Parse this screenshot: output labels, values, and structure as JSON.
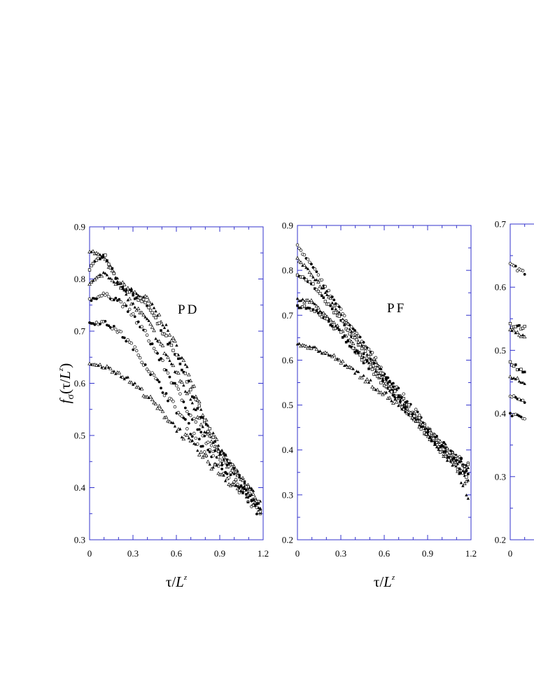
{
  "chart_data": [
    {
      "type": "scatter",
      "panel_label": "PD",
      "xlim": [
        0,
        1.2
      ],
      "ylim": [
        0.3,
        0.9
      ],
      "xticks": [
        "0",
        "0.3",
        "0.6",
        "0.9",
        "1.2"
      ],
      "yticks": [
        "0.3",
        "0.4",
        "0.5",
        "0.6",
        "0.7",
        "0.8",
        "0.9"
      ],
      "xlabel": "τ/L^z",
      "ylabel": "f_σ(τ/L^z)",
      "series": [
        {
          "marker": "triangle",
          "points": [
            [
              0,
              0.855
            ],
            [
              0.1,
              0.84
            ],
            [
              0.2,
              0.795
            ],
            [
              0.3,
              0.775
            ],
            [
              0.4,
              0.76
            ],
            [
              0.5,
              0.72
            ],
            [
              0.6,
              0.67
            ],
            [
              0.7,
              0.61
            ],
            [
              0.8,
              0.53
            ],
            [
              0.9,
              0.47
            ],
            [
              1.0,
              0.43
            ],
            [
              1.1,
              0.4
            ],
            [
              1.18,
              0.37
            ]
          ]
        },
        {
          "marker": "square",
          "points": [
            [
              0,
              0.82
            ],
            [
              0.1,
              0.85
            ],
            [
              0.2,
              0.79
            ],
            [
              0.3,
              0.77
            ],
            [
              0.4,
              0.75
            ],
            [
              0.5,
              0.7
            ],
            [
              0.6,
              0.65
            ],
            [
              0.7,
              0.59
            ],
            [
              0.8,
              0.52
            ],
            [
              0.9,
              0.47
            ],
            [
              1.0,
              0.43
            ],
            [
              1.1,
              0.39
            ],
            [
              1.18,
              0.36
            ]
          ]
        },
        {
          "marker": "triangle",
          "points": [
            [
              0,
              0.79
            ],
            [
              0.1,
              0.812
            ],
            [
              0.2,
              0.79
            ],
            [
              0.3,
              0.75
            ],
            [
              0.4,
              0.72
            ],
            [
              0.5,
              0.67
            ],
            [
              0.6,
              0.62
            ],
            [
              0.7,
              0.57
            ],
            [
              0.8,
              0.51
            ],
            [
              0.9,
              0.46
            ],
            [
              1.0,
              0.43
            ],
            [
              1.1,
              0.39
            ],
            [
              1.18,
              0.37
            ]
          ]
        },
        {
          "marker": "circle",
          "points": [
            [
              0,
              0.76
            ],
            [
              0.1,
              0.77
            ],
            [
              0.2,
              0.76
            ],
            [
              0.3,
              0.73
            ],
            [
              0.4,
              0.69
            ],
            [
              0.5,
              0.64
            ],
            [
              0.6,
              0.59
            ],
            [
              0.7,
              0.54
            ],
            [
              0.8,
              0.49
            ],
            [
              0.9,
              0.45
            ],
            [
              1.0,
              0.42
            ],
            [
              1.1,
              0.39
            ],
            [
              1.18,
              0.36
            ]
          ]
        },
        {
          "marker": "circle",
          "points": [
            [
              0,
              0.715
            ],
            [
              0.1,
              0.717
            ],
            [
              0.2,
              0.7
            ],
            [
              0.3,
              0.67
            ],
            [
              0.4,
              0.63
            ],
            [
              0.5,
              0.59
            ],
            [
              0.6,
              0.55
            ],
            [
              0.7,
              0.51
            ],
            [
              0.8,
              0.47
            ],
            [
              0.9,
              0.44
            ],
            [
              1.0,
              0.41
            ],
            [
              1.1,
              0.38
            ],
            [
              1.18,
              0.35
            ]
          ]
        },
        {
          "marker": "triangle",
          "points": [
            [
              0,
              0.635
            ],
            [
              0.1,
              0.632
            ],
            [
              0.2,
              0.62
            ],
            [
              0.3,
              0.6
            ],
            [
              0.4,
              0.575
            ],
            [
              0.5,
              0.545
            ],
            [
              0.6,
              0.515
            ],
            [
              0.7,
              0.485
            ],
            [
              0.8,
              0.455
            ],
            [
              0.9,
              0.43
            ],
            [
              1.0,
              0.405
            ],
            [
              1.1,
              0.38
            ],
            [
              1.18,
              0.36
            ]
          ]
        }
      ]
    },
    {
      "type": "scatter",
      "panel_label": "PF",
      "xlim": [
        0,
        1.2
      ],
      "ylim": [
        0.2,
        0.9
      ],
      "xticks": [
        "0",
        "0.3",
        "0.6",
        "0.9",
        "1.2"
      ],
      "yticks": [
        "0.2",
        "0.3",
        "0.4",
        "0.5",
        "0.6",
        "0.7",
        "0.8",
        "0.9"
      ],
      "xlabel": "τ/L^z",
      "series": [
        {
          "marker": "circle",
          "points": [
            [
              0,
              0.855
            ],
            [
              0.1,
              0.81
            ],
            [
              0.2,
              0.76
            ],
            [
              0.3,
              0.71
            ],
            [
              0.4,
              0.66
            ],
            [
              0.5,
              0.62
            ],
            [
              0.6,
              0.57
            ],
            [
              0.7,
              0.53
            ],
            [
              0.8,
              0.49
            ],
            [
              0.9,
              0.45
            ],
            [
              1.0,
              0.41
            ],
            [
              1.1,
              0.38
            ],
            [
              1.18,
              0.36
            ]
          ]
        },
        {
          "marker": "triangle",
          "points": [
            [
              0,
              0.825
            ],
            [
              0.1,
              0.79
            ],
            [
              0.2,
              0.75
            ],
            [
              0.3,
              0.7
            ],
            [
              0.4,
              0.655
            ],
            [
              0.5,
              0.61
            ],
            [
              0.6,
              0.565
            ],
            [
              0.7,
              0.52
            ],
            [
              0.8,
              0.48
            ],
            [
              0.9,
              0.44
            ],
            [
              1.0,
              0.4
            ],
            [
              1.1,
              0.365
            ],
            [
              1.18,
              0.33
            ]
          ]
        },
        {
          "marker": "square",
          "points": [
            [
              0,
              0.79
            ],
            [
              0.1,
              0.77
            ],
            [
              0.2,
              0.73
            ],
            [
              0.3,
              0.69
            ],
            [
              0.4,
              0.645
            ],
            [
              0.5,
              0.6
            ],
            [
              0.6,
              0.56
            ],
            [
              0.7,
              0.52
            ],
            [
              0.8,
              0.48
            ],
            [
              0.9,
              0.44
            ],
            [
              1.0,
              0.41
            ],
            [
              1.1,
              0.38
            ],
            [
              1.18,
              0.36
            ]
          ]
        },
        {
          "marker": "triangle",
          "points": [
            [
              0,
              0.735
            ],
            [
              0.1,
              0.73
            ],
            [
              0.2,
              0.7
            ],
            [
              0.3,
              0.665
            ],
            [
              0.4,
              0.625
            ],
            [
              0.5,
              0.59
            ],
            [
              0.6,
              0.55
            ],
            [
              0.7,
              0.515
            ],
            [
              0.8,
              0.475
            ],
            [
              0.9,
              0.435
            ],
            [
              1.0,
              0.395
            ],
            [
              1.1,
              0.355
            ],
            [
              1.18,
              0.3
            ]
          ]
        },
        {
          "marker": "square",
          "points": [
            [
              0,
              0.72
            ],
            [
              0.1,
              0.715
            ],
            [
              0.2,
              0.69
            ],
            [
              0.3,
              0.66
            ],
            [
              0.4,
              0.62
            ],
            [
              0.5,
              0.585
            ],
            [
              0.6,
              0.545
            ],
            [
              0.7,
              0.51
            ],
            [
              0.8,
              0.47
            ],
            [
              0.9,
              0.44
            ],
            [
              1.0,
              0.4
            ],
            [
              1.1,
              0.37
            ],
            [
              1.18,
              0.34
            ]
          ]
        },
        {
          "marker": "triangle",
          "points": [
            [
              0,
              0.635
            ],
            [
              0.1,
              0.628
            ],
            [
              0.2,
              0.615
            ],
            [
              0.3,
              0.598
            ],
            [
              0.4,
              0.575
            ],
            [
              0.5,
              0.55
            ],
            [
              0.6,
              0.525
            ],
            [
              0.7,
              0.5
            ],
            [
              0.8,
              0.47
            ],
            [
              0.9,
              0.44
            ],
            [
              1.0,
              0.41
            ],
            [
              1.1,
              0.38
            ],
            [
              1.18,
              0.36
            ]
          ]
        }
      ]
    },
    {
      "type": "scatter",
      "panel_label": "",
      "xlim": [
        0,
        1.2
      ],
      "ylim": [
        0.2,
        0.7
      ],
      "xticks": [
        "0"
      ],
      "yticks": [
        "0.2",
        "0.3",
        "0.4",
        "0.5",
        "0.6",
        "0.7"
      ],
      "series": [
        {
          "marker": "circle",
          "points": [
            [
              0,
              0.635
            ],
            [
              0.1,
              0.622
            ]
          ]
        },
        {
          "marker": "square",
          "points": [
            [
              0,
              0.54
            ],
            [
              0.1,
              0.535
            ]
          ]
        },
        {
          "marker": "triangle",
          "points": [
            [
              0,
              0.53
            ],
            [
              0.1,
              0.522
            ]
          ]
        },
        {
          "marker": "square",
          "points": [
            [
              0,
              0.48
            ],
            [
              0.1,
              0.465
            ]
          ]
        },
        {
          "marker": "triangle",
          "points": [
            [
              0,
              0.46
            ],
            [
              0.1,
              0.445
            ]
          ]
        },
        {
          "marker": "circle",
          "points": [
            [
              0,
              0.43
            ],
            [
              0.1,
              0.418
            ]
          ]
        },
        {
          "marker": "circle",
          "points": [
            [
              0,
              0.4
            ],
            [
              0.1,
              0.392
            ]
          ]
        }
      ]
    }
  ]
}
